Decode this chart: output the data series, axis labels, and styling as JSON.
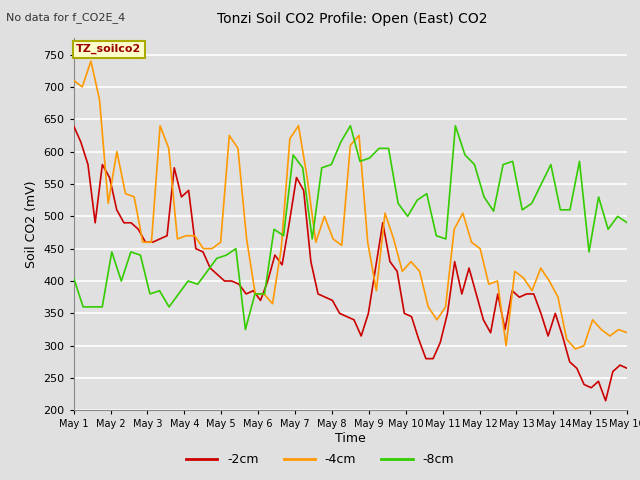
{
  "title": "Tonzi Soil CO2 Profile: Open (East) CO2",
  "subtitle": "No data for f_CO2E_4",
  "ylabel": "Soil CO2 (mV)",
  "xlabel": "Time",
  "legend_label": "TZ_soilco2",
  "ylim": [
    200,
    775
  ],
  "yticks": [
    200,
    250,
    300,
    350,
    400,
    450,
    500,
    550,
    600,
    650,
    700,
    750
  ],
  "bg_color": "#e0e0e0",
  "line_colors": {
    "2cm": "#cc0000",
    "4cm": "#ff9900",
    "8cm": "#33cc00"
  },
  "x_tick_labels": [
    "May 1",
    "May 2",
    "May 3",
    "May 4",
    "May 5",
    "May 6",
    "May 7",
    "May 8",
    "May 9",
    "May 10",
    "May 11",
    "May 12",
    "May 13",
    "May 14",
    "May 15",
    "May 16"
  ],
  "series_2cm": [
    640,
    615,
    580,
    490,
    580,
    560,
    510,
    490,
    490,
    480,
    460,
    460,
    465,
    470,
    575,
    530,
    540,
    450,
    445,
    420,
    410,
    400,
    400,
    395,
    380,
    385,
    370,
    400,
    440,
    425,
    490,
    560,
    540,
    430,
    380,
    375,
    370,
    350,
    345,
    340,
    315,
    350,
    420,
    490,
    430,
    415,
    350,
    345,
    310,
    280,
    280,
    305,
    350,
    430,
    380,
    420,
    380,
    340,
    320,
    380,
    325,
    385,
    375,
    380,
    380,
    350,
    315,
    350,
    315,
    275,
    265,
    240,
    235,
    245,
    215,
    260,
    270,
    265
  ],
  "series_4cm": [
    710,
    700,
    740,
    680,
    520,
    600,
    535,
    530,
    460,
    460,
    640,
    605,
    465,
    470,
    470,
    450,
    450,
    460,
    625,
    605,
    465,
    380,
    380,
    365,
    450,
    620,
    640,
    560,
    460,
    500,
    465,
    455,
    610,
    625,
    460,
    385,
    505,
    465,
    415,
    430,
    415,
    360,
    340,
    360,
    480,
    505,
    460,
    450,
    395,
    400,
    300,
    415,
    405,
    385,
    420,
    400,
    375,
    310,
    295,
    300,
    340,
    325,
    315,
    325,
    320
  ],
  "series_8cm": [
    405,
    360,
    360,
    360,
    445,
    400,
    445,
    440,
    380,
    385,
    360,
    380,
    400,
    395,
    415,
    435,
    440,
    450,
    325,
    380,
    380,
    480,
    470,
    595,
    575,
    465,
    575,
    580,
    615,
    640,
    585,
    590,
    605,
    605,
    520,
    500,
    525,
    535,
    470,
    465,
    640,
    595,
    580,
    530,
    508,
    580,
    585,
    510,
    520,
    550,
    580,
    510,
    510,
    585,
    445,
    530,
    480,
    500,
    490
  ]
}
